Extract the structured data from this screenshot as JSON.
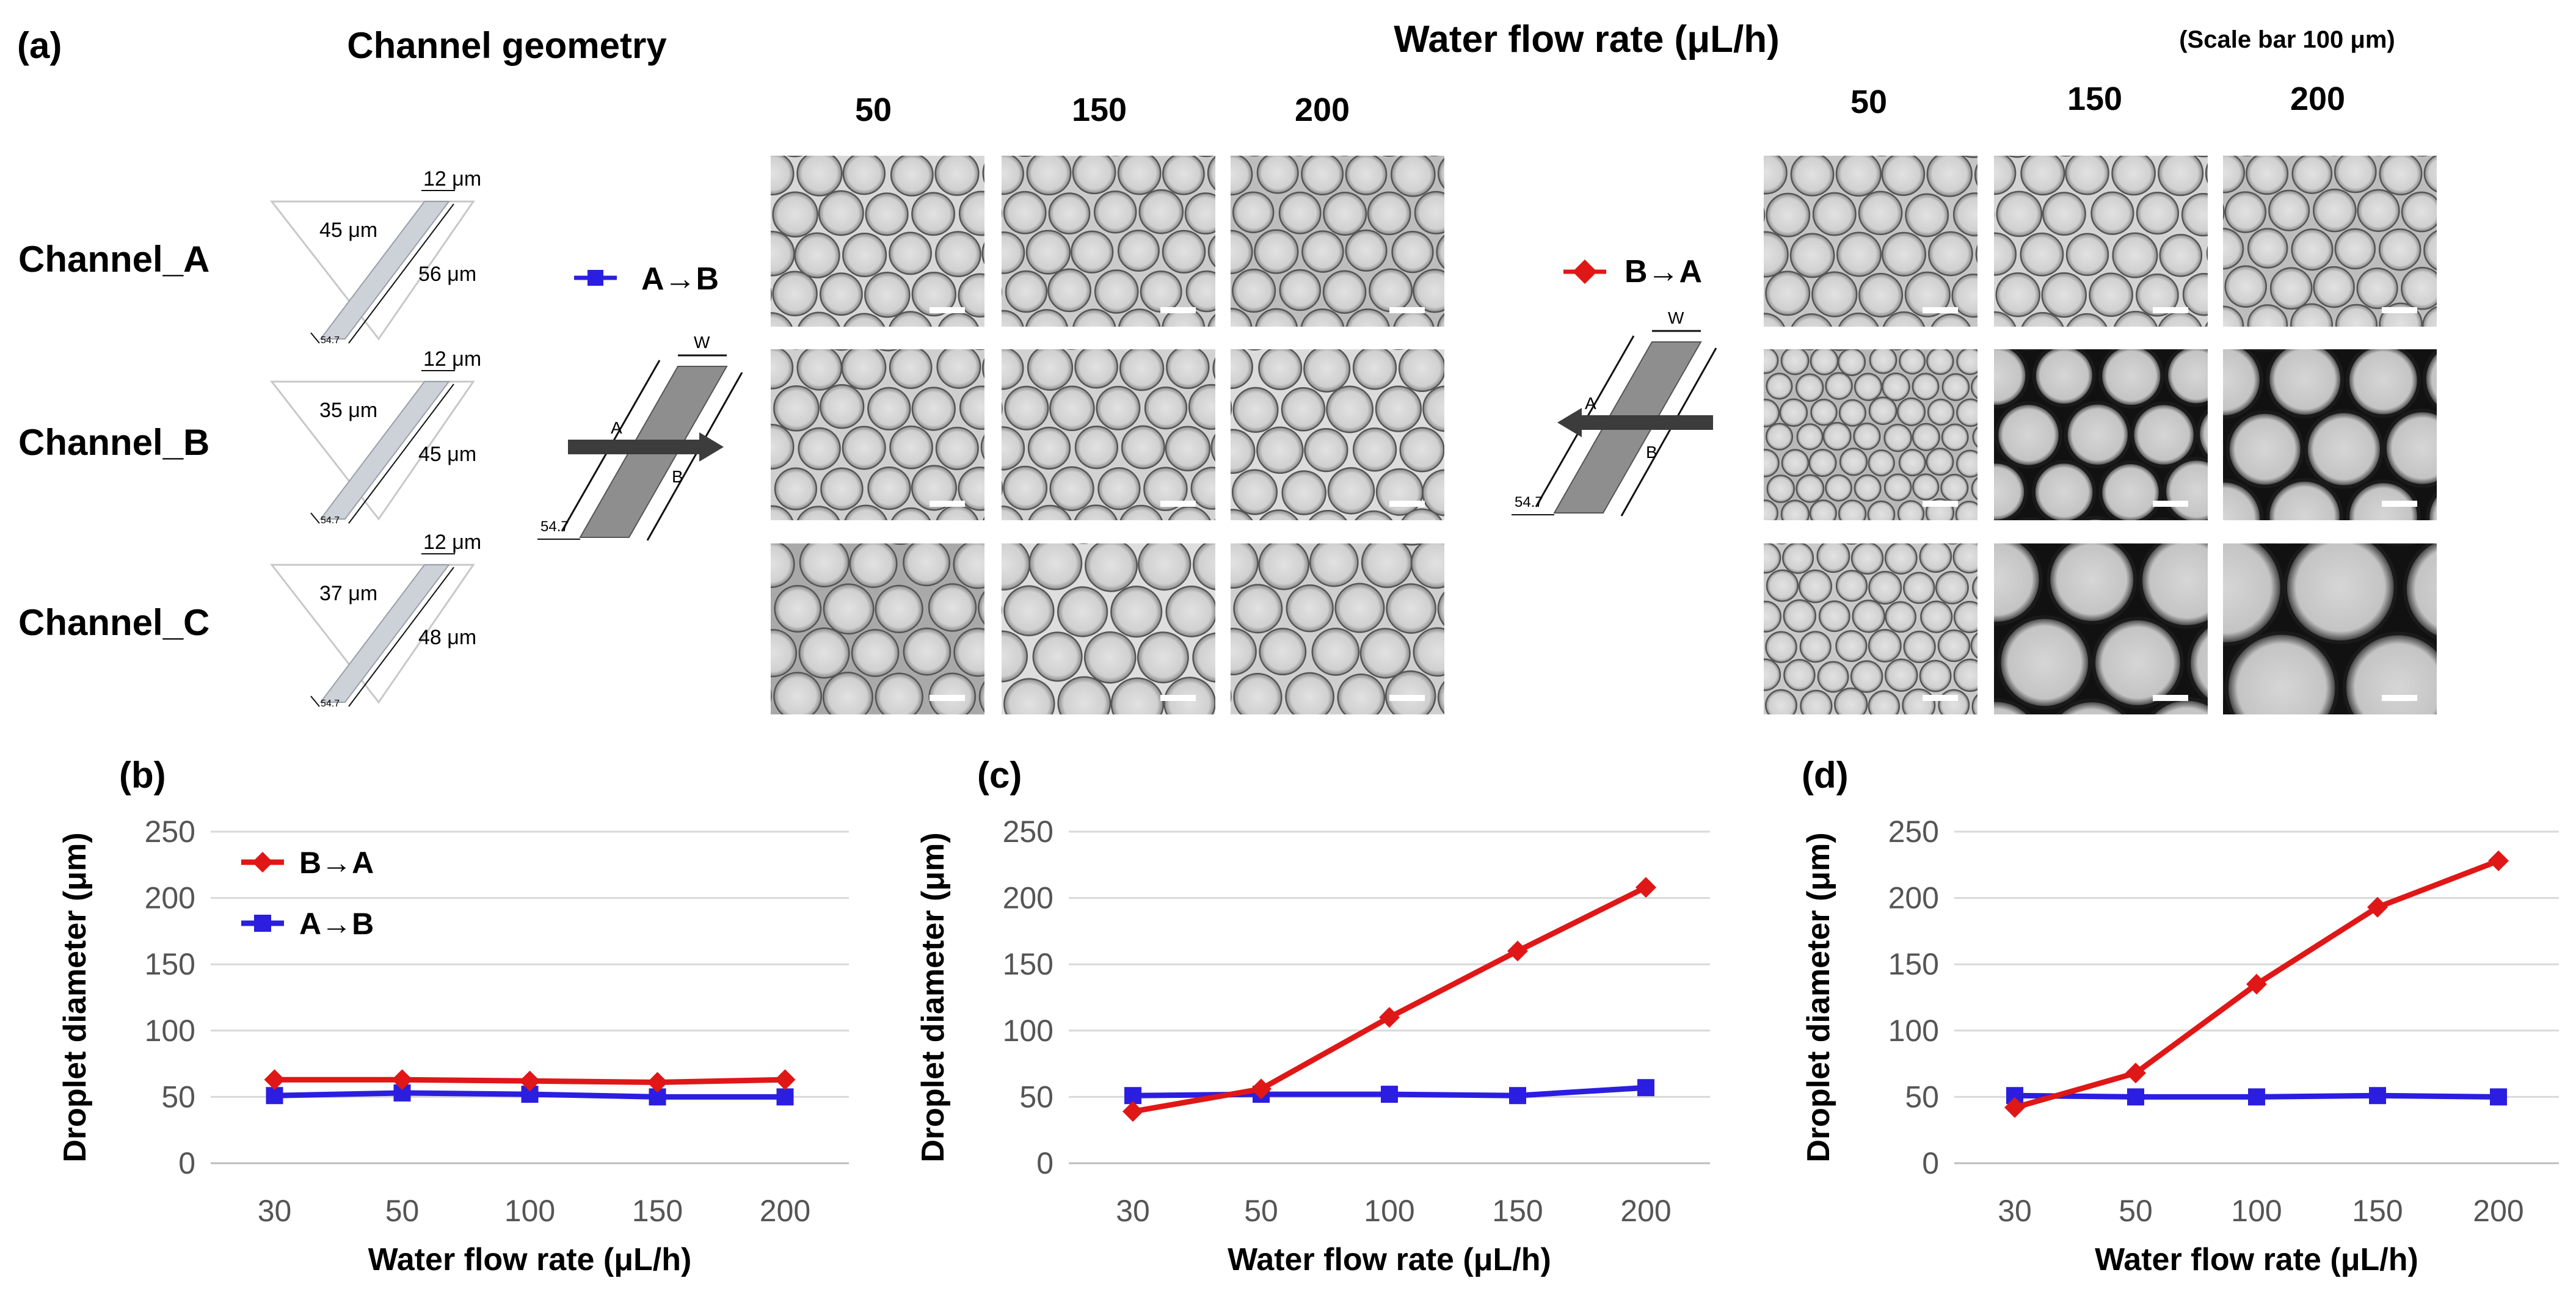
{
  "figure": {
    "panel_a_label": "(a)",
    "channel_geometry_title": "Channel geometry",
    "water_flow_title": "Water flow rate (μL/h)",
    "scale_bar_note": "(Scale bar 100 μm)",
    "flow_columns": [
      "50",
      "150",
      "200"
    ],
    "direction_left": {
      "label": "A→B",
      "color": "#2b1ee0"
    },
    "direction_right": {
      "label": "B→A",
      "color": "#e01717"
    },
    "parallelogram_labels": {
      "a": "A",
      "b": "B",
      "w": "W",
      "angle": "54.7"
    },
    "channels": [
      {
        "name": "Channel_A",
        "top": "12 μm",
        "depth": "45 μm",
        "length": "56 μm",
        "angle": "54.7"
      },
      {
        "name": "Channel_B",
        "top": "12 μm",
        "depth": "35 μm",
        "length": "45 μm",
        "angle": "54.7"
      },
      {
        "name": "Channel_C",
        "top": "12 μm",
        "depth": "37 μm",
        "length": "48 μm",
        "angle": "54.7"
      }
    ]
  },
  "chart_data": [
    {
      "type": "line",
      "panel_label": "(b)",
      "categories": [
        "30",
        "50",
        "100",
        "150",
        "200"
      ],
      "series": [
        {
          "name": "B→A",
          "color": "#e01717",
          "marker": "diamond",
          "values": [
            63,
            63,
            62,
            61,
            63
          ]
        },
        {
          "name": "A→B",
          "color": "#2b1ee0",
          "marker": "square",
          "values": [
            51,
            53,
            52,
            50,
            50
          ]
        }
      ],
      "ylim": [
        0,
        250
      ],
      "yticks": [
        "0",
        "50",
        "100",
        "150",
        "200",
        "250"
      ],
      "xlabel": "Water flow rate (μL/h)",
      "ylabel": "Droplet diameter (μm)",
      "legend": "top-left",
      "grid": true
    },
    {
      "type": "line",
      "panel_label": "(c)",
      "categories": [
        "30",
        "50",
        "100",
        "150",
        "200"
      ],
      "series": [
        {
          "name": "B→A",
          "color": "#e01717",
          "marker": "diamond",
          "values": [
            39,
            56,
            110,
            160,
            208
          ]
        },
        {
          "name": "A→B",
          "color": "#2b1ee0",
          "marker": "square",
          "values": [
            51,
            52,
            52,
            51,
            57
          ]
        }
      ],
      "ylim": [
        0,
        250
      ],
      "yticks": [
        "0",
        "50",
        "100",
        "150",
        "200",
        "250"
      ],
      "xlabel": "Water flow rate (μL/h)",
      "ylabel": "Droplet diameter (μm)",
      "legend": "none",
      "grid": true
    },
    {
      "type": "line",
      "panel_label": "(d)",
      "categories": [
        "30",
        "50",
        "100",
        "150",
        "200"
      ],
      "series": [
        {
          "name": "B→A",
          "color": "#e01717",
          "marker": "diamond",
          "values": [
            42,
            68,
            135,
            193,
            228
          ]
        },
        {
          "name": "A→B",
          "color": "#2b1ee0",
          "marker": "square",
          "values": [
            51,
            50,
            50,
            51,
            50
          ]
        }
      ],
      "ylim": [
        0,
        250
      ],
      "yticks": [
        "0",
        "50",
        "100",
        "150",
        "200",
        "250"
      ],
      "xlabel": "Water flow rate (μL/h)",
      "ylabel": "Droplet diameter (μm)",
      "legend": "none",
      "grid": true
    }
  ]
}
